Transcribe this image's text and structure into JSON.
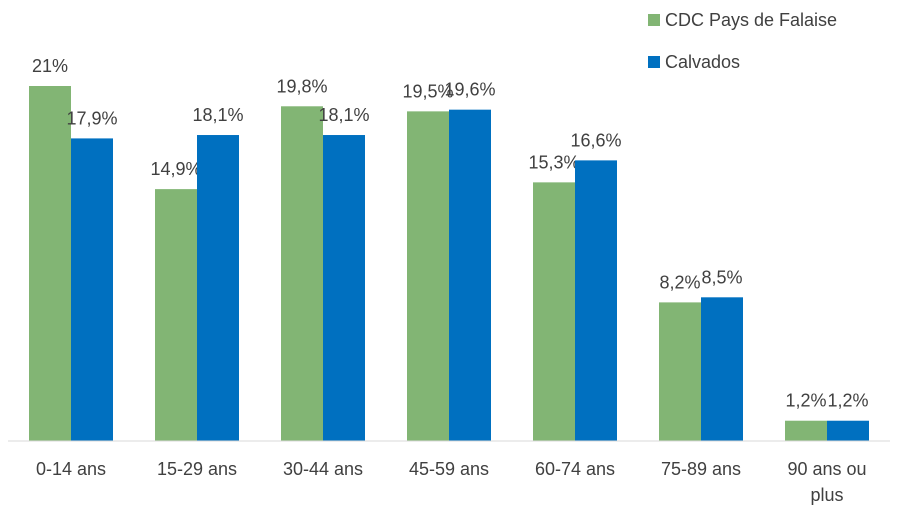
{
  "chart_data": {
    "type": "bar",
    "categories": [
      "0-14 ans",
      "15-29 ans",
      "30-44 ans",
      "45-59 ans",
      "60-74 ans",
      "75-89 ans",
      "90 ans ou plus"
    ],
    "series": [
      {
        "name": "CDC Pays de Falaise",
        "color": "#82b574",
        "values": [
          21,
          14.9,
          19.8,
          19.5,
          15.3,
          8.2,
          1.2
        ],
        "value_labels": [
          "21%",
          "14,9%",
          "19,8%",
          "19,5%",
          "15,3%",
          "8,2%",
          "1,2%"
        ]
      },
      {
        "name": "Calvados",
        "color": "#0070c0",
        "values": [
          17.9,
          18.1,
          18.1,
          19.6,
          16.6,
          8.5,
          1.2
        ],
        "value_labels": [
          "17,9%",
          "18,1%",
          "18,1%",
          "19,6%",
          "16,6%",
          "8,5%",
          "1,2%"
        ]
      }
    ],
    "legend": "top-right"
  }
}
